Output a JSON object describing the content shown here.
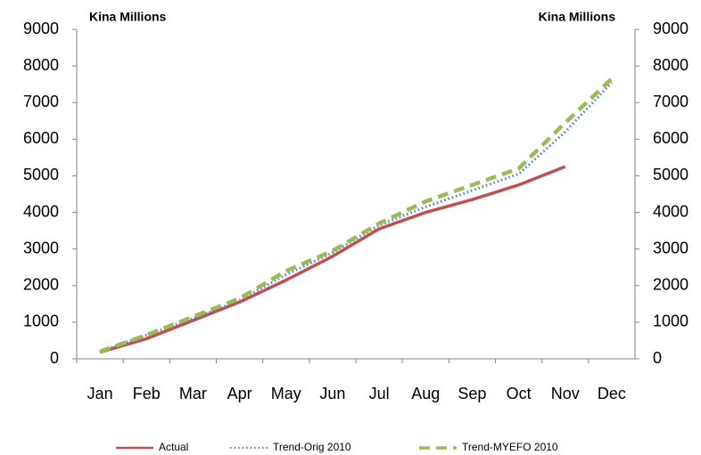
{
  "chart_data": {
    "type": "line",
    "y_label": "Kina Millions",
    "y2_label": "Kina Millions",
    "categories": [
      "Jan",
      "Feb",
      "Mar",
      "Apr",
      "May",
      "Jun",
      "Jul",
      "Aug",
      "Sep",
      "Oct",
      "Nov",
      "Dec"
    ],
    "series": [
      {
        "name": "Actual",
        "color": "#c0504d",
        "style": "solid",
        "values": [
          180,
          550,
          1050,
          1550,
          2150,
          2800,
          3550,
          4000,
          4350,
          4750,
          5250,
          null
        ]
      },
      {
        "name": "Trend-Orig 2010",
        "color": "#4f81bd",
        "style": "dotted",
        "values": [
          200,
          650,
          1100,
          1600,
          2300,
          2900,
          3650,
          4150,
          4600,
          5050,
          6200,
          7550
        ]
      },
      {
        "name": "Trend-MYEFO 2010",
        "color": "#9bbb59",
        "style": "dashed",
        "values": [
          200,
          650,
          1150,
          1650,
          2400,
          2950,
          3700,
          4300,
          4750,
          5200,
          6450,
          7650
        ]
      }
    ],
    "ylim": [
      0,
      9000
    ],
    "yticks": [
      0,
      1000,
      2000,
      3000,
      4000,
      5000,
      6000,
      7000,
      8000,
      9000
    ],
    "y2lim": [
      0,
      9000
    ],
    "y2ticks": [
      0,
      1000,
      2000,
      3000,
      4000,
      5000,
      6000,
      7000,
      8000,
      9000
    ],
    "legend": "bottom"
  }
}
